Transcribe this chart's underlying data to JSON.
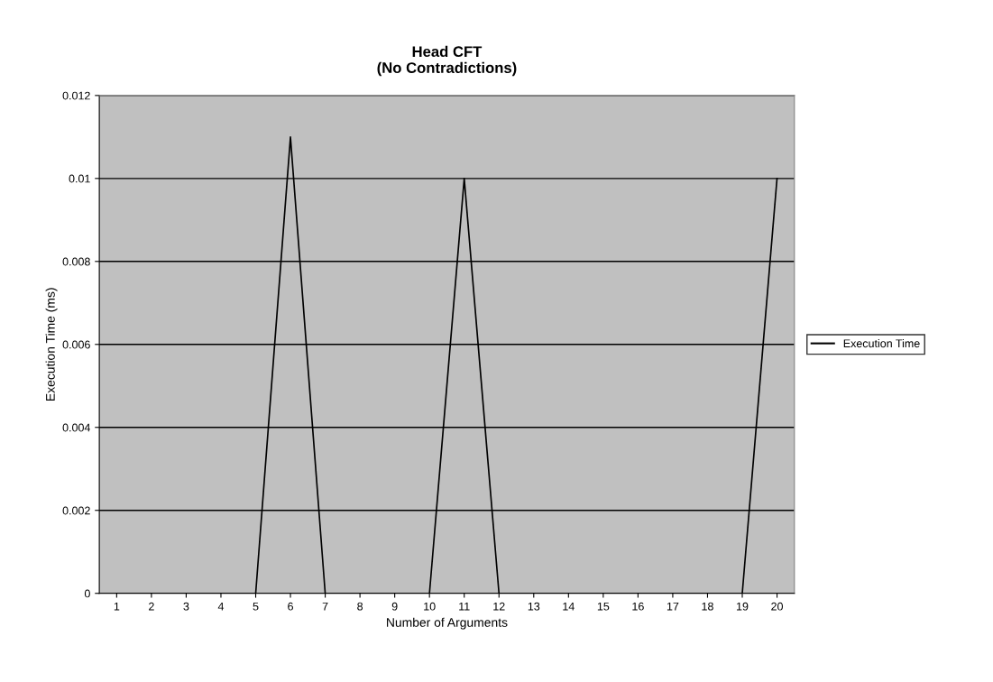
{
  "chart_data": {
    "type": "line",
    "title": "Head CFT\n(No Contradictions)",
    "xlabel": "Number of Arguments",
    "ylabel": "Execution Time (ms)",
    "categories": [
      "1",
      "2",
      "3",
      "4",
      "5",
      "6",
      "7",
      "8",
      "9",
      "10",
      "11",
      "12",
      "13",
      "14",
      "15",
      "16",
      "17",
      "18",
      "19",
      "20"
    ],
    "series": [
      {
        "name": "Execution Time",
        "color": "#000000",
        "values": [
          0,
          0,
          0,
          0,
          0,
          0.011,
          0,
          0,
          0,
          0,
          0.01,
          0,
          0,
          0,
          0,
          0,
          0,
          0,
          0,
          0.01
        ]
      }
    ],
    "ylim": [
      0,
      0.012
    ],
    "yticks": [
      0,
      0.002,
      0.004,
      0.006,
      0.008,
      0.01,
      0.012
    ],
    "grid": "y",
    "legend": "right",
    "marker": "none",
    "line_style": "solid"
  }
}
